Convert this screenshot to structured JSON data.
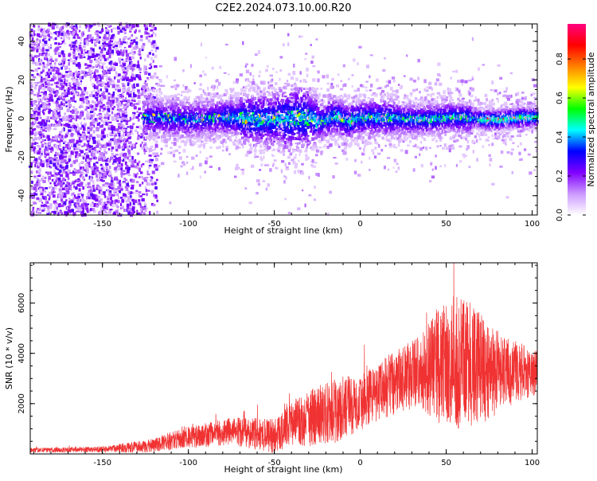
{
  "title": "C2E2.2024.073.10.00.R20",
  "chart_data": [
    {
      "type": "heatmap",
      "xlabel": "Height of straight line (km)",
      "ylabel": "Frequency (Hz)",
      "xlim": [
        -192,
        103
      ],
      "ylim": [
        -50,
        49
      ],
      "xticks": [
        -150,
        -100,
        -50,
        0,
        50,
        100
      ],
      "yticks": [
        -40,
        -20,
        0,
        20,
        40
      ],
      "colorbar": {
        "label": "Normalized spectral amplitude",
        "range": [
          0,
          0.98
        ],
        "ticks": [
          0.0,
          0.2,
          0.4,
          0.6,
          0.8
        ],
        "colormap": [
          "#ffffff",
          "#cc99ff",
          "#8000ff",
          "#0000ff",
          "#00ffff",
          "#00ff00",
          "#ffff00",
          "#ff8000",
          "#ff0000",
          "#ff0080"
        ]
      },
      "regions": [
        {
          "x": [
            -192,
            -126
          ],
          "description_values": {
            "freq_spread": [
              -50,
              49
            ],
            "amplitude": [
              0.02,
              0.1
            ]
          }
        },
        {
          "x": [
            -126,
            103
          ],
          "description_values": {
            "freq_center": 0,
            "freq_spread_hz": [
              8,
              14
            ],
            "amplitude": [
              0.1,
              0.9
            ]
          }
        }
      ]
    },
    {
      "type": "line",
      "xlabel": "Height of straight line (km)",
      "ylabel": "SNR (10 * v/v)",
      "xlim": [
        -192,
        103
      ],
      "ylim": [
        0,
        7600
      ],
      "xticks": [
        -150,
        -100,
        -50,
        0,
        50,
        100
      ],
      "yticks": [
        2000,
        4000,
        6000
      ],
      "color": "#f03232",
      "envelope": {
        "x": [
          -192,
          -150,
          -125,
          -100,
          -75,
          -50,
          -40,
          -25,
          -10,
          0,
          10,
          25,
          35,
          45,
          55,
          65,
          75,
          85,
          95,
          103
        ],
        "y": [
          150,
          180,
          300,
          650,
          900,
          700,
          1200,
          1500,
          1800,
          2000,
          2500,
          3000,
          3300,
          3500,
          3700,
          3500,
          3300,
          3200,
          3300,
          3200
        ],
        "spread": [
          90,
          120,
          250,
          450,
          550,
          700,
          900,
          1200,
          1300,
          1100,
          1200,
          1300,
          1500,
          2300,
          2700,
          2500,
          2000,
          1400,
          1100,
          900
        ]
      }
    }
  ]
}
